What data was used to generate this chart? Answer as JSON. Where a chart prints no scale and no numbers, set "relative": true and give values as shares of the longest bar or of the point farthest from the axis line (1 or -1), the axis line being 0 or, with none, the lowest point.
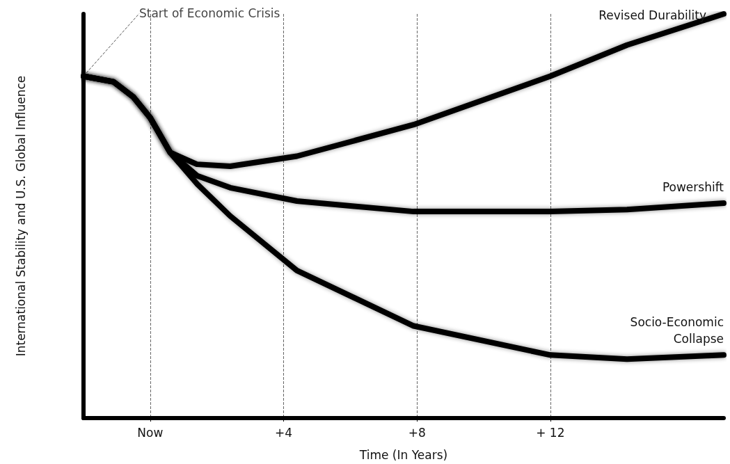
{
  "chart_data": {
    "type": "line",
    "relative": true,
    "xlabel": "Time (In Years)",
    "ylabel": "International Stability and U.S. Global Influence",
    "x": [
      -2,
      -1.1,
      -0.5,
      0,
      0.6,
      1.4,
      2.4,
      4.4,
      7.9,
      12,
      14.3,
      17.2
    ],
    "xlim": [
      -2,
      17.2
    ],
    "xticks": [
      {
        "value": 0,
        "label": "Now"
      },
      {
        "value": 4,
        "label": "+4"
      },
      {
        "value": 8,
        "label": "+8"
      },
      {
        "value": 12,
        "label": "+ 12"
      }
    ],
    "series": [
      {
        "name": "Revised Durability",
        "color": "#000000",
        "values": [
          0.846,
          0.832,
          0.794,
          0.743,
          0.657,
          0.628,
          0.623,
          0.648,
          0.726,
          0.846,
          0.923,
          1.0
        ]
      },
      {
        "name": "Powershift",
        "color": "#000000",
        "values": [
          0.846,
          0.832,
          0.794,
          0.743,
          0.657,
          0.6,
          0.57,
          0.537,
          0.511,
          0.511,
          0.516,
          0.532
        ]
      },
      {
        "name": "Socio-Economic Collapse",
        "color": "#000000",
        "values": [
          0.846,
          0.832,
          0.794,
          0.743,
          0.657,
          0.58,
          0.5,
          0.365,
          0.228,
          0.156,
          0.146,
          0.156
        ]
      }
    ],
    "annotations": [
      {
        "text": "Start of Economic Crisis",
        "x": -2,
        "y": 0.846
      }
    ],
    "grid": "x",
    "legend": false,
    "tick_labels": "x",
    "marker": "none",
    "line_style": "solid"
  }
}
